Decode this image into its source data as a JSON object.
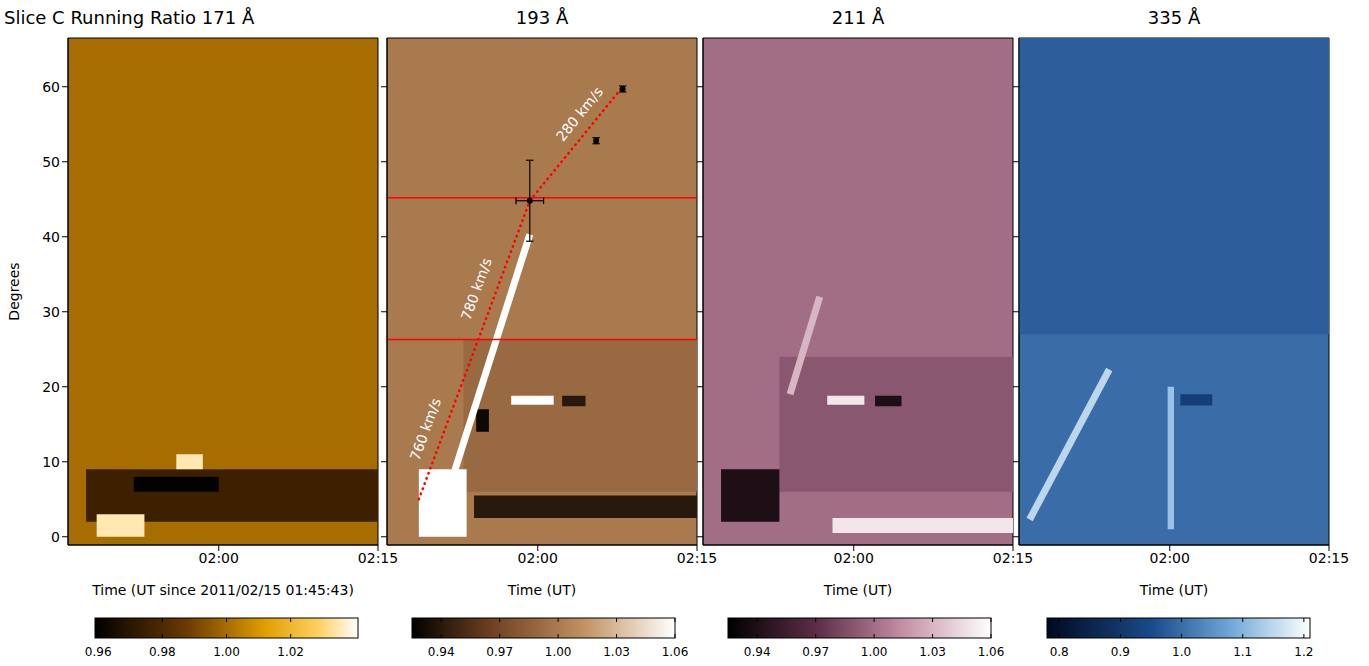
{
  "chart_data": [
    {
      "type": "heatmap",
      "title": "Slice C Running Ratio 171 Å",
      "xlabel": "Time (UT since 2011/02/15 01:45:43)",
      "ylabel": "Degrees",
      "xlim": [
        45.8,
        75
      ],
      "xticks": [
        {
          "value": 60,
          "label": "02:00"
        },
        {
          "value": 75,
          "label": "02:15"
        }
      ],
      "ylim": [
        -1.1,
        66.5
      ],
      "yticks": [
        0,
        10,
        20,
        30,
        40,
        50,
        60
      ],
      "colorbar": {
        "range": [
          0.959,
          1.041
        ],
        "ticks": [
          0.96,
          0.98,
          {
            "value": 1,
            "label": "1.00"
          },
          1.02
        ]
      },
      "background": 1.0,
      "cells": [
        {
          "x": [
            47.5,
            75
          ],
          "y": [
            2,
            9
          ],
          "value": 0.975
        },
        {
          "x": [
            52,
            60
          ],
          "y": [
            6,
            8
          ],
          "value": 0.96
        },
        {
          "x": [
            48.5,
            53
          ],
          "y": [
            0,
            3
          ],
          "value": 1.035
        },
        {
          "x": [
            56,
            58.5
          ],
          "y": [
            9,
            11
          ],
          "value": 1.035
        }
      ]
    },
    {
      "type": "heatmap",
      "title": "193 Å",
      "xlabel": "Time (UT)",
      "tick_labels": "x",
      "xlim": [
        45.8,
        75
      ],
      "xticks": [
        {
          "value": 60,
          "label": "02:00"
        },
        {
          "value": 75,
          "label": "02:15"
        }
      ],
      "ylim": [
        -1.1,
        66.5
      ],
      "yticks": [
        0,
        10,
        20,
        30,
        40,
        50,
        60
      ],
      "colorbar": {
        "range": [
          0.925,
          1.06
        ],
        "ticks": [
          0.94,
          0.97,
          {
            "value": 1,
            "label": "1.00"
          },
          1.03,
          1.06
        ]
      },
      "background": 1.0,
      "cells": [
        {
          "x": [
            53,
            75
          ],
          "y": [
            6,
            26.3
          ],
          "value": 0.99
        },
        {
          "x": [
            48.8,
            53.3
          ],
          "y": [
            0,
            9
          ],
          "value": 1.06
        },
        {
          "x": [
            54,
            75
          ],
          "y": [
            2.5,
            5.5
          ],
          "value": 0.94
        },
        {
          "x": [
            54.2,
            55.4
          ],
          "y": [
            14,
            17
          ],
          "value": 0.93
        },
        {
          "x": [
            57.5,
            61.5
          ],
          "y": [
            17.6,
            18.8
          ],
          "value": 1.06
        },
        {
          "x": [
            62.3,
            64.5
          ],
          "y": [
            17.4,
            18.8
          ],
          "value": 0.94
        }
      ],
      "ridges": [
        {
          "x": [
            52.2,
            59.25
          ],
          "y": [
            8.9,
            40.3
          ],
          "value": 1.06
        }
      ],
      "fit": {
        "x": [
          48.8,
          54.4,
          59.25,
          68.0
        ],
        "y": [
          5,
          26.3,
          44.8,
          60
        ],
        "color": "#ff0000",
        "line_style": "dotted"
      },
      "hlines": {
        "values": [
          26.3,
          45.2
        ],
        "color": "#ff0000"
      },
      "points": {
        "x": [
          59.25,
          65.5,
          68.0
        ],
        "y": [
          44.8,
          52.8,
          59.7
        ],
        "xerr": [
          1.3,
          0,
          0
        ],
        "yerr": [
          5.4,
          0.4,
          0.4
        ]
      },
      "annotations": [
        {
          "text": "760 km/s",
          "x": 49.5,
          "y": 14.3
        },
        {
          "text": "780 km/s",
          "x": 54.3,
          "y": 33
        },
        {
          "text": "280 km/s",
          "x": 64,
          "y": 56.3
        }
      ]
    },
    {
      "type": "heatmap",
      "title": "211 Å",
      "xlabel": "Time (UT)",
      "tick_labels": "x",
      "xlim": [
        45.8,
        75
      ],
      "xticks": [
        {
          "value": 60,
          "label": "02:00"
        },
        {
          "value": 75,
          "label": "02:15"
        }
      ],
      "ylim": [
        -1.1,
        66.5
      ],
      "yticks": [
        0,
        10,
        20,
        30,
        40,
        50,
        60
      ],
      "colorbar": {
        "range": [
          0.925,
          1.06
        ],
        "ticks": [
          0.94,
          0.97,
          {
            "value": 1,
            "label": "1.00"
          },
          1.03,
          1.06
        ]
      },
      "background": 1.0,
      "cells": [
        {
          "x": [
            53,
            75
          ],
          "y": [
            6,
            24
          ],
          "value": 0.99
        },
        {
          "x": [
            47.5,
            53
          ],
          "y": [
            2,
            9
          ],
          "value": 0.94
        },
        {
          "x": [
            58,
            75
          ],
          "y": [
            0.5,
            2.5
          ],
          "value": 1.05
        },
        {
          "x": [
            57.5,
            61
          ],
          "y": [
            17.6,
            18.8
          ],
          "value": 1.05
        },
        {
          "x": [
            62,
            64.5
          ],
          "y": [
            17.4,
            18.8
          ],
          "value": 0.94
        }
      ],
      "ridges": [
        {
          "x": [
            54,
            56.8
          ],
          "y": [
            19,
            32
          ],
          "value": 1.03
        }
      ]
    },
    {
      "type": "heatmap",
      "title": "335 Å",
      "xlabel": "Time (UT)",
      "tick_labels": "x",
      "xlim": [
        45.8,
        75
      ],
      "xticks": [
        {
          "value": 60,
          "label": "02:00"
        },
        {
          "value": 75,
          "label": "02:15"
        }
      ],
      "ylim": [
        -1.1,
        66.5
      ],
      "yticks": [
        0,
        10,
        20,
        30,
        40,
        50,
        60
      ],
      "colorbar": {
        "range": [
          0.78,
          1.21
        ],
        "ticks": [
          0.8,
          0.9,
          {
            "value": 1,
            "label": "1.0"
          },
          1.1,
          1.2
        ]
      },
      "background": 1.0,
      "cells": [
        {
          "x": [
            45.8,
            75
          ],
          "y": [
            27,
            66.5
          ],
          "value": 0.98
        },
        {
          "x": [
            59.8,
            60.4
          ],
          "y": [
            1,
            20
          ],
          "value": 1.12
        },
        {
          "x": [
            61,
            64
          ],
          "y": [
            17.5,
            19
          ],
          "value": 0.92
        }
      ],
      "ridges": [
        {
          "x": [
            46.8,
            54.3
          ],
          "y": [
            2.3,
            22.3
          ],
          "value": 1.15
        }
      ]
    }
  ]
}
